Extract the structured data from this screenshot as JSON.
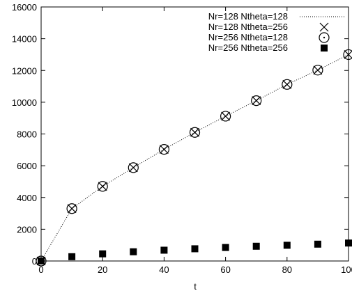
{
  "chart_data": {
    "type": "scatter",
    "title": "",
    "xlabel": "t",
    "ylabel": "",
    "xlim": [
      0,
      100
    ],
    "ylim": [
      0,
      16000
    ],
    "xticks": [
      "0",
      "20",
      "40",
      "60",
      "80",
      "100"
    ],
    "yticks": [
      "0",
      "2000",
      "4000",
      "6000",
      "8000",
      "10000",
      "12000",
      "14000",
      "16000"
    ],
    "legend_position": "top-right",
    "series": [
      {
        "name": "Nr=128 Ntheta=128",
        "style": "dotted-line",
        "x": [
          0,
          10,
          20,
          30,
          40,
          50,
          60,
          70,
          80,
          90,
          100
        ],
        "y": [
          0,
          3300,
          4700,
          5880,
          7030,
          8100,
          9120,
          10100,
          11120,
          12020,
          13000
        ]
      },
      {
        "name": "Nr=128 Ntheta=256",
        "style": "cross",
        "x": [
          0,
          10,
          20,
          30,
          40,
          50,
          60,
          70,
          80,
          90,
          100
        ],
        "y": [
          0,
          3300,
          4700,
          5880,
          7030,
          8100,
          9120,
          10100,
          11120,
          12020,
          13000
        ]
      },
      {
        "name": "Nr=256 Ntheta=128",
        "style": "circle-dot",
        "x": [
          0,
          10,
          20,
          30,
          40,
          50,
          60,
          70,
          80,
          90,
          100
        ],
        "y": [
          0,
          3300,
          4700,
          5880,
          7030,
          8100,
          9120,
          10100,
          11120,
          12020,
          13000
        ]
      },
      {
        "name": "Nr=256 Ntheta=256",
        "style": "filled-square",
        "x": [
          0,
          10,
          20,
          30,
          40,
          50,
          60,
          70,
          80,
          90,
          100
        ],
        "y": [
          0,
          270,
          450,
          580,
          680,
          770,
          850,
          930,
          990,
          1060,
          1130
        ]
      }
    ]
  }
}
